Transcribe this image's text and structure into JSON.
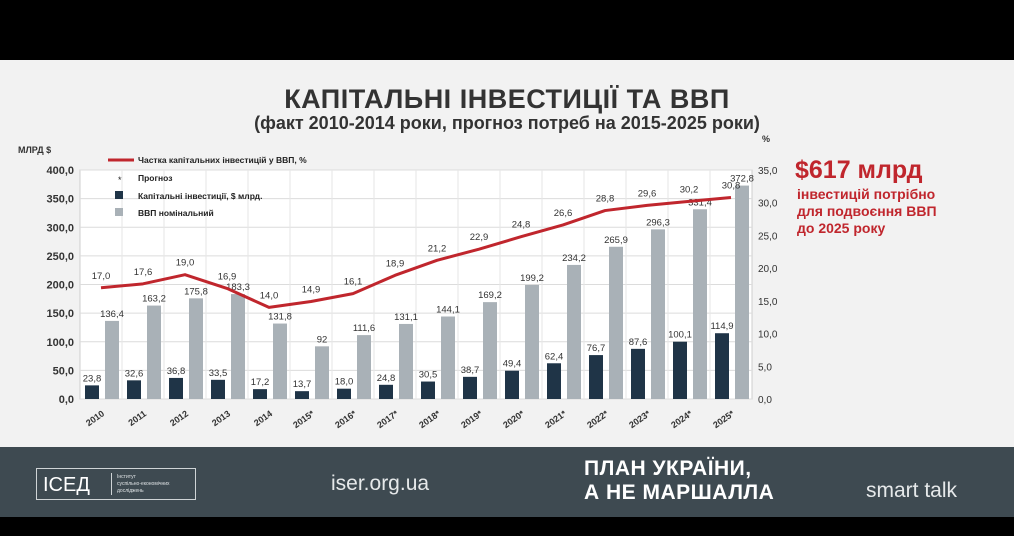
{
  "title": "КАПІТАЛЬНІ ІНВЕСТИЦІЇ ТА ВВП",
  "subtitle": "(факт 2010-2014 роки, прогноз потреб на 2015-2025 роки)",
  "callout": {
    "big": "$617 млрд",
    "lines": [
      "інвестицій потрібно",
      "для подвоєння ВВП",
      "до 2025 року"
    ],
    "color": "#c0262d"
  },
  "footer": {
    "logo": "ІСЕД",
    "logo_sub": [
      "Інститут",
      "суспільно-економічних",
      "досліджень"
    ],
    "site": "iser.org.ua",
    "slogan": [
      "ПЛАН УКРАЇНИ,",
      "А НЕ МАРШАЛЛА"
    ],
    "brand": "smart talk"
  },
  "chart_data": {
    "type": "bar",
    "categories": [
      "2010",
      "2011",
      "2012",
      "2013",
      "2014",
      "2015*",
      "2016*",
      "2017*",
      "2018*",
      "2019*",
      "2020*",
      "2021*",
      "2022*",
      "2023*",
      "2024*",
      "2025*"
    ],
    "ylabel_left": "МЛРД $",
    "ylabel_right": "%",
    "ylim_left": [
      0,
      400
    ],
    "ylim_right": [
      0,
      35
    ],
    "left_ticks": [
      "400,0",
      "350,0",
      "300,0",
      "250,0",
      "200,0",
      "150,0",
      "100,0",
      "50,0",
      "0,0"
    ],
    "right_ticks": [
      "35,0",
      "30,0",
      "25,0",
      "20,0",
      "15,0",
      "10,0",
      "5,0",
      "0,0"
    ],
    "legend": {
      "line": "Частка капітальних інвестицій у ВВП, %",
      "marker": "Прогноз",
      "bar1": "Капітальні інвестиції, $ млрд.",
      "bar2": "ВВП номінальний"
    },
    "series": [
      {
        "name": "Капітальні інвестиції, $ млрд.",
        "values": [
          23.8,
          32.6,
          36.8,
          33.5,
          17.2,
          13.7,
          18.0,
          24.8,
          30.5,
          38.7,
          49.4,
          62.4,
          76.7,
          87.6,
          100.1,
          114.9
        ],
        "labels": [
          "23,8",
          "32,6",
          "36,8",
          "33,5",
          "17,2",
          "13,7",
          "18,0",
          "24,8",
          "30,5",
          "38,7",
          "49,4",
          "62,4",
          "76,7",
          "87,6",
          "100,1",
          "114,9"
        ],
        "color": "#1f3447"
      },
      {
        "name": "ВВП номінальний",
        "values": [
          136.4,
          163.2,
          175.8,
          183.3,
          131.8,
          92,
          111.6,
          131.1,
          144.1,
          169.2,
          199.2,
          234.2,
          265.9,
          296.3,
          331.4,
          372.8
        ],
        "labels": [
          "136,4",
          "163,2",
          "175,8",
          "183,3",
          "131,8",
          "92",
          "111,6",
          "131,1",
          "144,1",
          "169,2",
          "199,2",
          "234,2",
          "265,9",
          "296,3",
          "331,4",
          "372,8"
        ],
        "color": "#a9b1b7"
      },
      {
        "name": "Частка капітальних інвестицій у ВВП, %",
        "axis": "right",
        "values": [
          17.0,
          17.6,
          19.0,
          16.9,
          14.0,
          14.9,
          16.1,
          18.9,
          21.2,
          22.9,
          24.8,
          26.6,
          28.8,
          29.6,
          30.2,
          30.8
        ],
        "labels": [
          "17,0",
          "17,6",
          "19,0",
          "16,9",
          "14,0",
          "14,9",
          "16,1",
          "18,9",
          "21,2",
          "22,9",
          "24,8",
          "26,6",
          "28,8",
          "29,6",
          "30,2",
          "30,8"
        ],
        "color": "#c0262d"
      }
    ]
  }
}
